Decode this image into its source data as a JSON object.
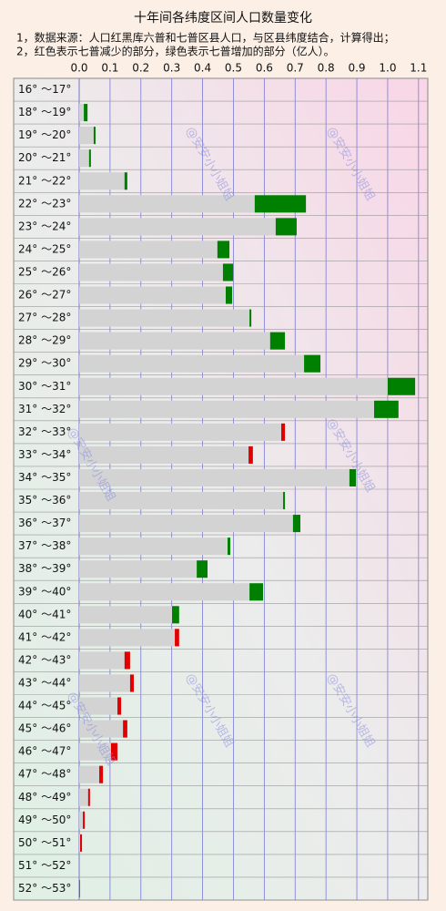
{
  "chart_data": {
    "type": "bar",
    "orientation": "horizontal",
    "title": "十年间各纬度区间人口数量变化",
    "notes": [
      "1，数据来源：人口红黑库六普和七普区县人口，与区县纬度结合，计算得出；",
      "2，红色表示七普减少的部分，绿色表示七普增加的部分（亿人）。"
    ],
    "watermark": "@安安小小姐姐",
    "categories": [
      "16° ～17°",
      "18° ～19°",
      "19° ～20°",
      "20° ～21°",
      "21° ～22°",
      "22° ～23°",
      "23° ～24°",
      "24° ～25°",
      "25° ～26°",
      "26° ～27°",
      "27° ～28°",
      "28° ～29°",
      "29° ～30°",
      "30° ～31°",
      "31° ～32°",
      "32° ～33°",
      "33° ～34°",
      "34° ～35°",
      "35° ～36°",
      "36° ～37°",
      "37° ～38°",
      "38° ～39°",
      "39° ～40°",
      "40° ～41°",
      "41° ～42°",
      "42° ～43°",
      "43° ～44°",
      "44° ～45°",
      "45° ～46°",
      "46° ～47°",
      "47° ～48°",
      "48° ～49°",
      "49° ～50°",
      "50° ～51°",
      "51° ～52°",
      "52° ～53°"
    ],
    "series": [
      {
        "values": [
          0,
          0.015,
          0.047,
          0.032,
          0.147,
          0.569,
          0.637,
          0.448,
          0.466,
          0.475,
          0.552,
          0.619,
          0.729,
          1.0,
          0.956,
          0.667,
          0.563,
          0.876,
          0.661,
          0.693,
          0.481,
          0.381,
          0.552,
          0.301,
          0.324,
          0.165,
          0.177,
          0.136,
          0.156,
          0.124,
          0.077,
          0.035,
          0.018,
          0.009,
          0,
          0.003
        ]
      },
      {
        "values": [
          0,
          0.027,
          0.053,
          0.038,
          0.156,
          0.735,
          0.705,
          0.487,
          0.499,
          0.496,
          0.558,
          0.667,
          0.782,
          1.089,
          1.035,
          0.655,
          0.549,
          0.897,
          0.667,
          0.717,
          0.49,
          0.416,
          0.596,
          0.324,
          0.31,
          0.147,
          0.165,
          0.124,
          0.142,
          0.103,
          0.065,
          0.029,
          0.012,
          0.003,
          0,
          0.001
        ]
      }
    ],
    "base_color": "#d3d3d3",
    "increase_color": "#008000",
    "decrease_color": "#e00000",
    "xlim": [
      0,
      1.13
    ],
    "xticks": [
      {
        "value": 0,
        "label": "0.0"
      },
      0.1,
      0.2,
      0.3,
      0.4,
      0.5,
      0.6,
      0.7,
      0.8,
      0.9,
      {
        "value": 1,
        "label": "1.0"
      },
      1.1
    ],
    "grid": true
  }
}
